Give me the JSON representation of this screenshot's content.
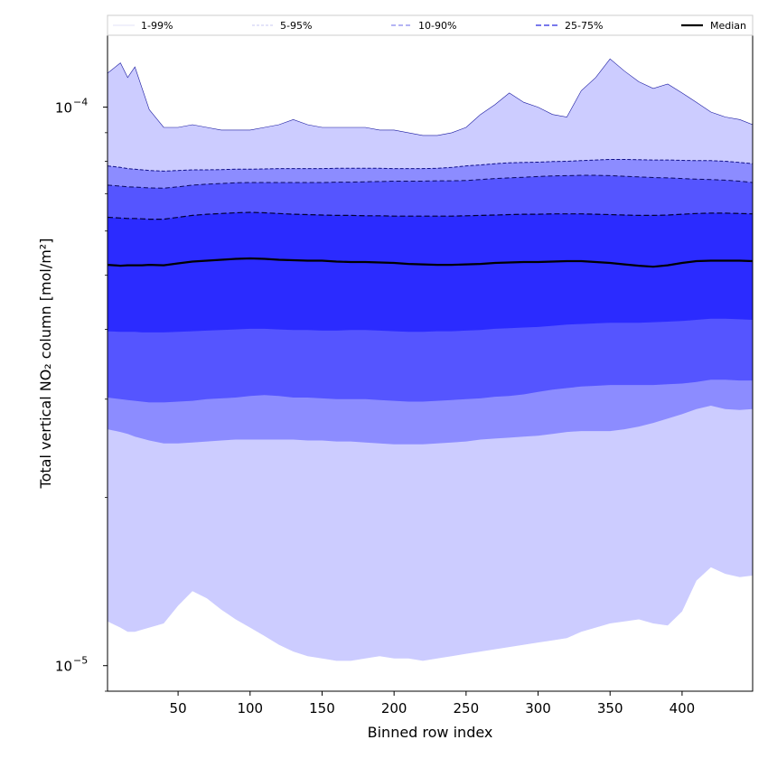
{
  "chart_data": {
    "type": "area",
    "title": "",
    "xlabel": "Binned row index",
    "ylabel": "Total vertical NO₂ column [mol/m²]",
    "xlim": [
      1,
      449
    ],
    "ylim": [
      9e-06,
      0.000135
    ],
    "yscale": "log",
    "xticks": [
      50,
      100,
      150,
      200,
      250,
      300,
      350,
      400
    ],
    "yticks": [
      {
        "value": 1e-05,
        "base": "10",
        "exp": "−5"
      },
      {
        "value": 0.0001,
        "base": "10",
        "exp": "−4"
      }
    ],
    "grid": false,
    "legend_position": "top",
    "x": [
      1,
      10,
      15,
      20,
      25,
      30,
      40,
      50,
      60,
      70,
      80,
      90,
      100,
      110,
      120,
      130,
      140,
      150,
      160,
      170,
      180,
      190,
      200,
      210,
      220,
      230,
      240,
      250,
      260,
      270,
      280,
      290,
      300,
      310,
      320,
      330,
      340,
      350,
      360,
      370,
      380,
      390,
      400,
      410,
      420,
      430,
      440,
      449
    ],
    "series": [
      {
        "name": "1-99%",
        "color": "#ccccff",
        "lower": [
          1.2e-05,
          1.17e-05,
          1.15e-05,
          1.15e-05,
          1.16e-05,
          1.17e-05,
          1.19e-05,
          1.28e-05,
          1.36e-05,
          1.32e-05,
          1.26e-05,
          1.21e-05,
          1.17e-05,
          1.13e-05,
          1.09e-05,
          1.06e-05,
          1.04e-05,
          1.03e-05,
          1.02e-05,
          1.02e-05,
          1.03e-05,
          1.04e-05,
          1.03e-05,
          1.03e-05,
          1.02e-05,
          1.03e-05,
          1.04e-05,
          1.05e-05,
          1.06e-05,
          1.07e-05,
          1.08e-05,
          1.09e-05,
          1.1e-05,
          1.11e-05,
          1.12e-05,
          1.15e-05,
          1.17e-05,
          1.19e-05,
          1.2e-05,
          1.21e-05,
          1.19e-05,
          1.18e-05,
          1.25e-05,
          1.42e-05,
          1.5e-05,
          1.46e-05,
          1.44e-05,
          1.45e-05
        ],
        "upper": [
          0.000115,
          0.00012,
          0.000113,
          0.000118,
          0.000108,
          9.9e-05,
          9.2e-05,
          9.2e-05,
          9.3e-05,
          9.2e-05,
          9.1e-05,
          9.1e-05,
          9.1e-05,
          9.2e-05,
          9.3e-05,
          9.5e-05,
          9.3e-05,
          9.2e-05,
          9.2e-05,
          9.2e-05,
          9.2e-05,
          9.1e-05,
          9.1e-05,
          9e-05,
          8.9e-05,
          8.9e-05,
          9e-05,
          9.2e-05,
          9.7e-05,
          0.000101,
          0.000106,
          0.000102,
          0.0001,
          9.7e-05,
          9.6e-05,
          0.000107,
          0.000113,
          0.000122,
          0.000116,
          0.000111,
          0.000108,
          0.00011,
          0.000106,
          0.000102,
          9.8e-05,
          9.6e-05,
          9.5e-05,
          9.3e-05
        ]
      },
      {
        "name": "5-95%",
        "color": "#8c8cff",
        "lower": [
          2.65e-05,
          2.62e-05,
          2.6e-05,
          2.57e-05,
          2.55e-05,
          2.53e-05,
          2.5e-05,
          2.5e-05,
          2.51e-05,
          2.52e-05,
          2.53e-05,
          2.54e-05,
          2.54e-05,
          2.54e-05,
          2.54e-05,
          2.54e-05,
          2.53e-05,
          2.53e-05,
          2.52e-05,
          2.52e-05,
          2.51e-05,
          2.5e-05,
          2.49e-05,
          2.49e-05,
          2.49e-05,
          2.5e-05,
          2.51e-05,
          2.52e-05,
          2.54e-05,
          2.55e-05,
          2.56e-05,
          2.57e-05,
          2.58e-05,
          2.6e-05,
          2.62e-05,
          2.63e-05,
          2.63e-05,
          2.63e-05,
          2.65e-05,
          2.68e-05,
          2.72e-05,
          2.77e-05,
          2.82e-05,
          2.88e-05,
          2.92e-05,
          2.88e-05,
          2.87e-05,
          2.88e-05
        ],
        "upper": [
          7.85e-05,
          7.8e-05,
          7.76e-05,
          7.74e-05,
          7.72e-05,
          7.7e-05,
          7.68e-05,
          7.7e-05,
          7.72e-05,
          7.72e-05,
          7.73e-05,
          7.74e-05,
          7.74e-05,
          7.75e-05,
          7.76e-05,
          7.76e-05,
          7.76e-05,
          7.76e-05,
          7.77e-05,
          7.77e-05,
          7.77e-05,
          7.77e-05,
          7.76e-05,
          7.76e-05,
          7.76e-05,
          7.77e-05,
          7.8e-05,
          7.85e-05,
          7.88e-05,
          7.92e-05,
          7.95e-05,
          7.96e-05,
          7.97e-05,
          7.99e-05,
          8e-05,
          8.02e-05,
          8.04e-05,
          8.06e-05,
          8.06e-05,
          8.05e-05,
          8.04e-05,
          8.04e-05,
          8.03e-05,
          8.02e-05,
          8.02e-05,
          8e-05,
          7.96e-05,
          7.92e-05
        ]
      },
      {
        "name": "10-90%",
        "color": "#5555ff",
        "lower": [
          3.02e-05,
          3e-05,
          2.99e-05,
          2.98e-05,
          2.97e-05,
          2.96e-05,
          2.96e-05,
          2.97e-05,
          2.98e-05,
          3e-05,
          3.01e-05,
          3.02e-05,
          3.04e-05,
          3.05e-05,
          3.04e-05,
          3.02e-05,
          3.02e-05,
          3.01e-05,
          3e-05,
          3e-05,
          3e-05,
          2.99e-05,
          2.98e-05,
          2.97e-05,
          2.97e-05,
          2.98e-05,
          2.99e-05,
          3e-05,
          3.01e-05,
          3.03e-05,
          3.04e-05,
          3.06e-05,
          3.09e-05,
          3.12e-05,
          3.14e-05,
          3.16e-05,
          3.17e-05,
          3.18e-05,
          3.18e-05,
          3.18e-05,
          3.18e-05,
          3.19e-05,
          3.2e-05,
          3.22e-05,
          3.25e-05,
          3.25e-05,
          3.24e-05,
          3.24e-05
        ],
        "upper": [
          7.25e-05,
          7.22e-05,
          7.2e-05,
          7.19e-05,
          7.18e-05,
          7.17e-05,
          7.16e-05,
          7.2e-05,
          7.25e-05,
          7.28e-05,
          7.3e-05,
          7.32e-05,
          7.33e-05,
          7.33e-05,
          7.33e-05,
          7.33e-05,
          7.33e-05,
          7.33e-05,
          7.34e-05,
          7.34e-05,
          7.35e-05,
          7.36e-05,
          7.37e-05,
          7.37e-05,
          7.37e-05,
          7.38e-05,
          7.38e-05,
          7.39e-05,
          7.42e-05,
          7.45e-05,
          7.47e-05,
          7.49e-05,
          7.51e-05,
          7.53e-05,
          7.54e-05,
          7.55e-05,
          7.55e-05,
          7.54e-05,
          7.52e-05,
          7.5e-05,
          7.48e-05,
          7.47e-05,
          7.45e-05,
          7.43e-05,
          7.42e-05,
          7.4e-05,
          7.37e-05,
          7.33e-05
        ]
      },
      {
        "name": "25-75%",
        "color": "#2b2bff",
        "lower": [
          3.97e-05,
          3.96e-05,
          3.96e-05,
          3.96e-05,
          3.95e-05,
          3.95e-05,
          3.95e-05,
          3.96e-05,
          3.97e-05,
          3.98e-05,
          3.99e-05,
          4e-05,
          4.01e-05,
          4.01e-05,
          4e-05,
          3.99e-05,
          3.99e-05,
          3.98e-05,
          3.98e-05,
          3.99e-05,
          3.99e-05,
          3.98e-05,
          3.97e-05,
          3.96e-05,
          3.96e-05,
          3.97e-05,
          3.97e-05,
          3.98e-05,
          3.99e-05,
          4.01e-05,
          4.02e-05,
          4.03e-05,
          4.04e-05,
          4.06e-05,
          4.08e-05,
          4.09e-05,
          4.1e-05,
          4.11e-05,
          4.11e-05,
          4.11e-05,
          4.12e-05,
          4.13e-05,
          4.14e-05,
          4.16e-05,
          4.18e-05,
          4.18e-05,
          4.17e-05,
          4.16e-05
        ],
        "upper": [
          6.35e-05,
          6.33e-05,
          6.32e-05,
          6.32e-05,
          6.31e-05,
          6.3e-05,
          6.3e-05,
          6.35e-05,
          6.4e-05,
          6.43e-05,
          6.45e-05,
          6.47e-05,
          6.48e-05,
          6.47e-05,
          6.45e-05,
          6.43e-05,
          6.42e-05,
          6.41e-05,
          6.4e-05,
          6.4e-05,
          6.39e-05,
          6.39e-05,
          6.38e-05,
          6.38e-05,
          6.38e-05,
          6.38e-05,
          6.38e-05,
          6.39e-05,
          6.4e-05,
          6.41e-05,
          6.42e-05,
          6.43e-05,
          6.43e-05,
          6.44e-05,
          6.44e-05,
          6.44e-05,
          6.43e-05,
          6.42e-05,
          6.41e-05,
          6.4e-05,
          6.4e-05,
          6.41e-05,
          6.43e-05,
          6.45e-05,
          6.46e-05,
          6.46e-05,
          6.45e-05,
          6.44e-05
        ]
      },
      {
        "name": "Median",
        "color": "#000000",
        "values": [
          5.22e-05,
          5.2e-05,
          5.21e-05,
          5.21e-05,
          5.21e-05,
          5.22e-05,
          5.21e-05,
          5.25e-05,
          5.29e-05,
          5.31e-05,
          5.33e-05,
          5.35e-05,
          5.36e-05,
          5.35e-05,
          5.33e-05,
          5.32e-05,
          5.31e-05,
          5.31e-05,
          5.29e-05,
          5.28e-05,
          5.28e-05,
          5.27e-05,
          5.26e-05,
          5.24e-05,
          5.23e-05,
          5.22e-05,
          5.22e-05,
          5.23e-05,
          5.24e-05,
          5.26e-05,
          5.27e-05,
          5.28e-05,
          5.28e-05,
          5.29e-05,
          5.3e-05,
          5.3e-05,
          5.28e-05,
          5.26e-05,
          5.23e-05,
          5.2e-05,
          5.18e-05,
          5.21e-05,
          5.26e-05,
          5.3e-05,
          5.31e-05,
          5.31e-05,
          5.31e-05,
          5.3e-05
        ]
      }
    ],
    "legend": [
      {
        "label": "1-99%",
        "color": "#d6d6f5",
        "dash": "none",
        "width": 0.8
      },
      {
        "label": "5-95%",
        "color": "#b8b8f0",
        "dash": "3,2",
        "width": 0.8
      },
      {
        "label": "10-90%",
        "color": "#8888ee",
        "dash": "5,3",
        "width": 1.2
      },
      {
        "label": "25-75%",
        "color": "#4b4be6",
        "dash": "6,3",
        "width": 1.4
      },
      {
        "label": "Median",
        "color": "#000000",
        "dash": "none",
        "width": 2.2
      }
    ]
  }
}
